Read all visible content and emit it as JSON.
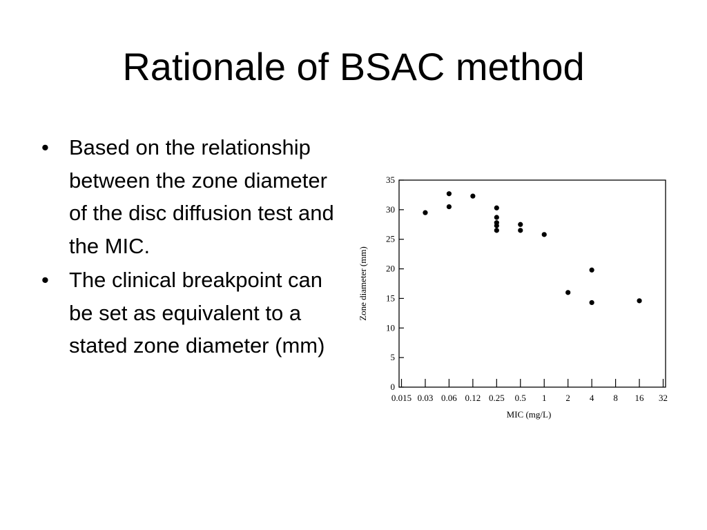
{
  "slide": {
    "title": "Rationale of BSAC method",
    "bullets": [
      "Based on the relationship between the zone diameter of the disc diffusion test and the MIC.",
      "The clinical breakpoint can be set as equivalent to a stated zone diameter (mm)"
    ],
    "bullet_glyph": "•"
  },
  "chart_data": {
    "type": "scatter",
    "xlabel": "MIC (mg/L)",
    "ylabel": "Zone diameter (mm)",
    "x_scale": "log2",
    "x_ticks": [
      "0.015",
      "0.03",
      "0.06",
      "0.12",
      "0.25",
      "0.5",
      "1",
      "2",
      "4",
      "8",
      "16",
      "32"
    ],
    "y_ticks": [
      0,
      5,
      10,
      15,
      20,
      25,
      30,
      35
    ],
    "ylim": [
      0,
      35
    ],
    "grid": false,
    "points": [
      {
        "x": "0.03",
        "y": 29.5
      },
      {
        "x": "0.06",
        "y": 32.7
      },
      {
        "x": "0.06",
        "y": 30.5
      },
      {
        "x": "0.12",
        "y": 32.3
      },
      {
        "x": "0.25",
        "y": 30.3
      },
      {
        "x": "0.25",
        "y": 28.7
      },
      {
        "x": "0.25",
        "y": 27.8
      },
      {
        "x": "0.25",
        "y": 27.3
      },
      {
        "x": "0.25",
        "y": 26.5
      },
      {
        "x": "0.5",
        "y": 27.5
      },
      {
        "x": "0.5",
        "y": 26.5
      },
      {
        "x": "1",
        "y": 25.8
      },
      {
        "x": "2",
        "y": 16.0
      },
      {
        "x": "4",
        "y": 19.8
      },
      {
        "x": "4",
        "y": 14.3
      },
      {
        "x": "16",
        "y": 14.6
      }
    ]
  }
}
